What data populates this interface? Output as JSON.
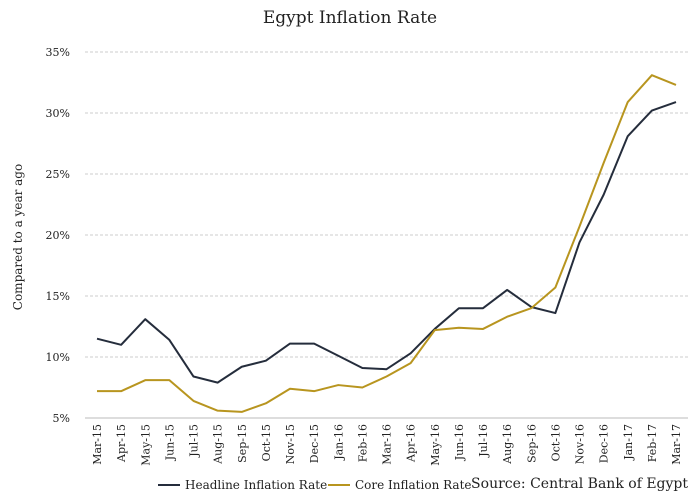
{
  "chart_data": {
    "type": "line",
    "title": "Egypt Inflation Rate",
    "xlabel": "",
    "ylabel": "Compared to a year ago",
    "ylim": [
      5,
      35
    ],
    "yticks": [
      "5%",
      "10%",
      "15%",
      "20%",
      "25%",
      "30%",
      "35%"
    ],
    "grid": true,
    "legend": "bottom",
    "categories": [
      "Mar-15",
      "Apr-15",
      "May-15",
      "Jun-15",
      "Jul-15",
      "Aug-15",
      "Sep-15",
      "Oct-15",
      "Nov-15",
      "Dec-15",
      "Jan-16",
      "Feb-16",
      "Mar-16",
      "Apr-16",
      "May-16",
      "Jun-16",
      "Jul-16",
      "Aug-16",
      "Sep-16",
      "Oct-16",
      "Nov-16",
      "Dec-16",
      "Jan-17",
      "Feb-17",
      "Mar-17"
    ],
    "series": [
      {
        "name": "Headline Inflation Rate",
        "color": "#252d3c",
        "values": [
          11.5,
          11.0,
          13.1,
          11.4,
          8.4,
          7.9,
          9.2,
          9.7,
          11.1,
          11.1,
          10.1,
          9.1,
          9.0,
          10.3,
          12.3,
          14.0,
          14.0,
          15.5,
          14.1,
          13.6,
          19.4,
          23.3,
          28.1,
          30.2,
          30.9
        ]
      },
      {
        "name": "Core Inflation Rate",
        "color": "#b8951f",
        "values": [
          7.2,
          7.2,
          8.1,
          8.1,
          6.4,
          5.6,
          5.5,
          6.2,
          7.4,
          7.2,
          7.7,
          7.5,
          8.4,
          9.5,
          12.2,
          12.4,
          12.3,
          13.3,
          14.0,
          15.7,
          20.7,
          25.9,
          30.9,
          33.1,
          32.3
        ]
      }
    ],
    "source": "Source: Central Bank of Egypt"
  }
}
